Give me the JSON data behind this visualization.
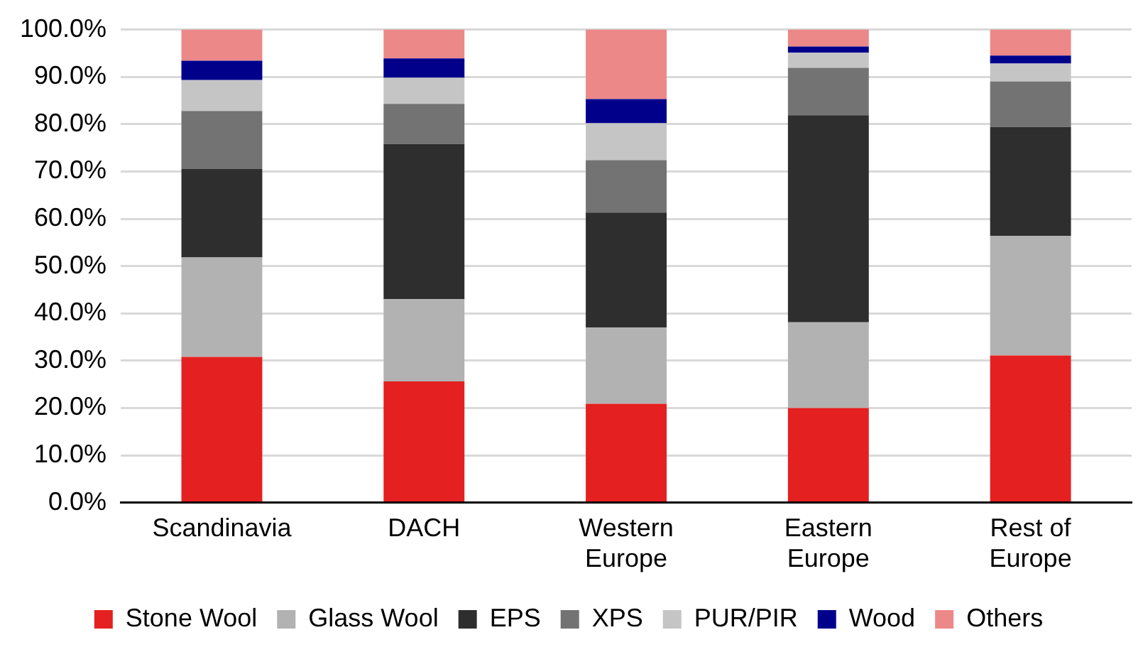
{
  "chart_data": {
    "type": "bar",
    "stacked": true,
    "categories": [
      "Scandinavia",
      "DACH",
      "Western Europe",
      "Eastern Europe",
      "Rest of Europe"
    ],
    "series": [
      {
        "name": "Stone Wool",
        "color": "#e42020",
        "values": [
          30.8,
          25.6,
          20.9,
          20.0,
          31.1
        ]
      },
      {
        "name": "Glass Wool",
        "color": "#b2b2b2",
        "values": [
          21.0,
          17.4,
          16.1,
          18.1,
          25.3
        ]
      },
      {
        "name": "EPS",
        "color": "#2e2e2e",
        "values": [
          18.7,
          32.8,
          24.3,
          43.8,
          23.0
        ]
      },
      {
        "name": "XPS",
        "color": "#737373",
        "values": [
          12.3,
          8.5,
          11.1,
          10.0,
          9.6
        ]
      },
      {
        "name": "PUR/PIR",
        "color": "#c5c5c5",
        "values": [
          6.5,
          5.5,
          7.8,
          3.2,
          3.8
        ]
      },
      {
        "name": "Wood",
        "color": "#00008b",
        "values": [
          4.1,
          4.1,
          5.1,
          1.3,
          1.7
        ]
      },
      {
        "name": "Others",
        "color": "#ec8888",
        "values": [
          6.6,
          6.1,
          14.7,
          3.6,
          5.5
        ]
      }
    ],
    "ylim": [
      0,
      100
    ],
    "yticks": [
      {
        "value": 0,
        "label": "0.0%"
      },
      {
        "value": 10,
        "label": "10.0%"
      },
      {
        "value": 20,
        "label": "20.0%"
      },
      {
        "value": 30,
        "label": "30.0%"
      },
      {
        "value": 40,
        "label": "40.0%"
      },
      {
        "value": 50,
        "label": "50.0%"
      },
      {
        "value": 60,
        "label": "60.0%"
      },
      {
        "value": 70,
        "label": "70.0%"
      },
      {
        "value": 80,
        "label": "80.0%"
      },
      {
        "value": 90,
        "label": "90.0%"
      },
      {
        "value": 100,
        "label": "100.0%"
      }
    ],
    "grid": "y",
    "legend": "bottom"
  }
}
